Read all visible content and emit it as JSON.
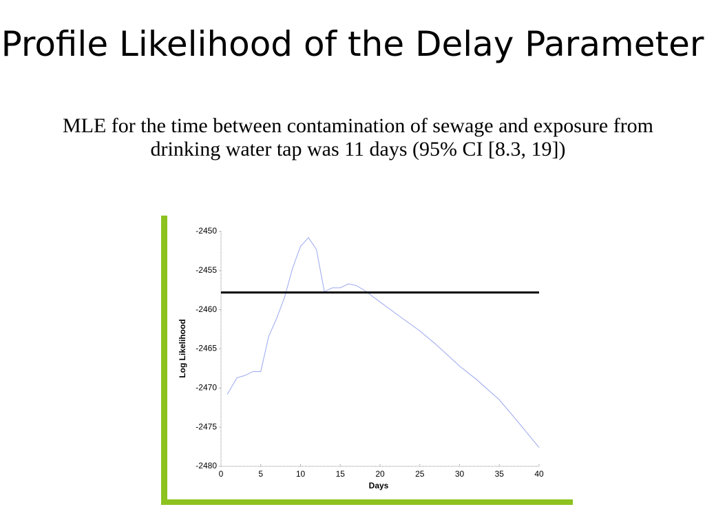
{
  "title": "Profile Likelihood of the Delay Parameter",
  "body": "MLE for the time between contamination of sewage and exposure from drinking water tap was 11 days (95% CI [8.3, 19])",
  "chart_data": {
    "type": "line",
    "xlabel": "Days",
    "ylabel": "Log Likelihood",
    "x": [
      0.8,
      2,
      3,
      4,
      5,
      6,
      7,
      8,
      9,
      10,
      11,
      12,
      13,
      14,
      15,
      16,
      17,
      18,
      20,
      22,
      25,
      27,
      30,
      32,
      35,
      37,
      40
    ],
    "values": [
      -2470.8,
      -2468.7,
      -2468.4,
      -2467.9,
      -2467.9,
      -2463.4,
      -2461.1,
      -2458.4,
      -2454.7,
      -2451.9,
      -2450.8,
      -2452.3,
      -2457.7,
      -2457.2,
      -2457.2,
      -2456.7,
      -2456.9,
      -2457.5,
      -2459.0,
      -2460.5,
      -2462.7,
      -2464.4,
      -2467.2,
      -2468.8,
      -2471.5,
      -2473.9,
      -2477.6
    ],
    "color": "#9aa6f0",
    "hline": {
      "value": -2457.8,
      "color": "#000000"
    },
    "xlim": [
      0,
      40
    ],
    "xticks": [
      0,
      5,
      10,
      15,
      20,
      25,
      30,
      35,
      40
    ],
    "ylim": [
      -2480,
      -2450
    ],
    "yticks": [
      -2480,
      -2475,
      -2470,
      -2465,
      -2460,
      -2455,
      -2450
    ]
  }
}
